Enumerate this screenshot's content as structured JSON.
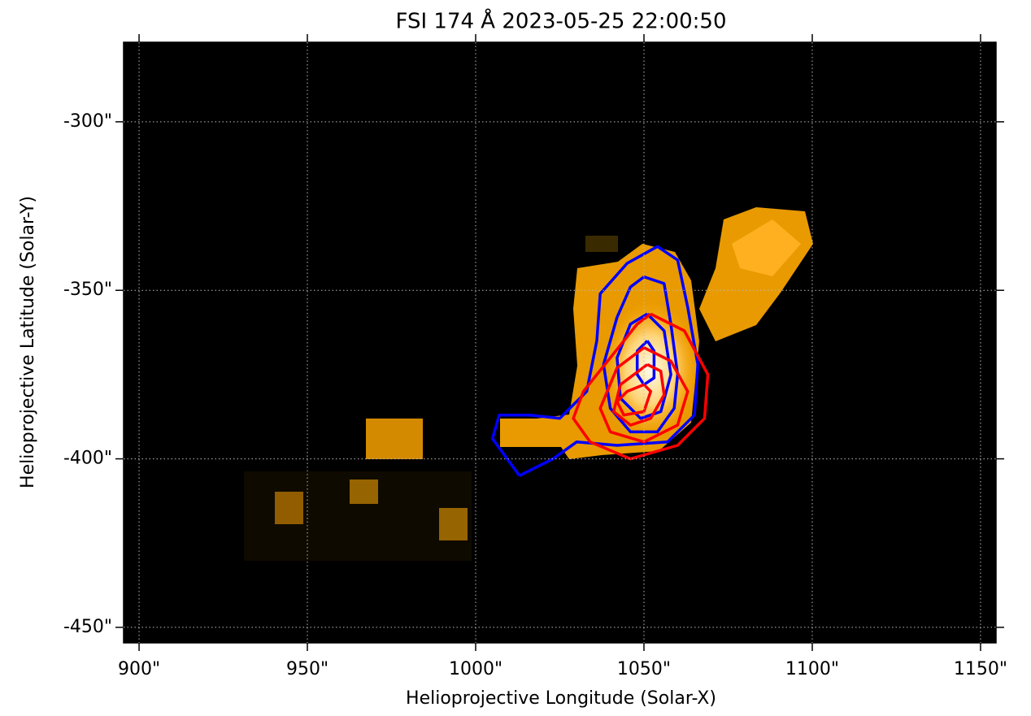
{
  "chart_data": {
    "type": "contour",
    "title": "FSI 174 Å 2023-05-25 22:00:50",
    "x_label": "Helioprojective Longitude (Solar-X)",
    "y_label": "Helioprojective Latitude (Solar-Y)",
    "xlim": [
      895.4,
      1154.6
    ],
    "ylim": [
      -454.6,
      -276.4
    ],
    "xticks": [
      {
        "value": 900,
        "label": "900\""
      },
      {
        "value": 950,
        "label": "950\""
      },
      {
        "value": 1000,
        "label": "1000\""
      },
      {
        "value": 1050,
        "label": "1050\""
      },
      {
        "value": 1100,
        "label": "1100\""
      },
      {
        "value": 1150,
        "label": "1150\""
      }
    ],
    "yticks": [
      {
        "value": -300,
        "label": "-300\""
      },
      {
        "value": -350,
        "label": "-350\""
      },
      {
        "value": -400,
        "label": "-400\""
      },
      {
        "value": -450,
        "label": "-450\""
      }
    ],
    "grid": true,
    "series": [
      {
        "color": "#0000ff",
        "x": [
          1013,
          1005,
          1007,
          1016,
          1025,
          1033,
          1036,
          1037,
          1045,
          1054,
          1060,
          1063,
          1066,
          1065,
          1057,
          1042,
          1030,
          1023,
          1013
        ],
        "values": [
          -405,
          -394,
          -387,
          -387,
          -388,
          -380,
          -365,
          -351,
          -342,
          -337,
          -341,
          -355,
          -372,
          -387,
          -395,
          -396,
          -395,
          -400,
          -405
        ]
      },
      {
        "color": "#0000ff",
        "x": [
          1050,
          1056,
          1058,
          1060,
          1059,
          1054,
          1046,
          1040,
          1038,
          1042,
          1046,
          1050
        ],
        "values": [
          -346,
          -348,
          -360,
          -375,
          -385,
          -392,
          -392,
          -385,
          -372,
          -358,
          -349,
          -346
        ]
      },
      {
        "color": "#0000ff",
        "x": [
          1051,
          1056,
          1058,
          1055,
          1049,
          1043,
          1042,
          1046,
          1051
        ],
        "values": [
          -357,
          -362,
          -375,
          -386,
          -388,
          -382,
          -370,
          -360,
          -357
        ]
      },
      {
        "color": "#0000ff",
        "x": [
          1051,
          1053,
          1053,
          1050,
          1048,
          1048,
          1051
        ],
        "values": [
          -365,
          -368,
          -376,
          -378,
          -375,
          -368,
          -365
        ]
      },
      {
        "color": "#ff0000",
        "x": [
          1052,
          1062,
          1069,
          1068,
          1060,
          1046,
          1034,
          1029,
          1032,
          1040,
          1048,
          1052
        ],
        "values": [
          -357,
          -362,
          -375,
          -388,
          -396,
          -400,
          -395,
          -388,
          -380,
          -370,
          -360,
          -357
        ]
      },
      {
        "color": "#ff0000",
        "x": [
          1050,
          1058,
          1063,
          1060,
          1050,
          1040,
          1037,
          1042,
          1050
        ],
        "values": [
          -367,
          -371,
          -380,
          -390,
          -395,
          -392,
          -385,
          -373,
          -367
        ]
      },
      {
        "color": "#ff0000",
        "x": [
          1051,
          1055,
          1056,
          1052,
          1046,
          1041,
          1043,
          1051
        ],
        "values": [
          -372,
          -374,
          -381,
          -388,
          -390,
          -386,
          -378,
          -372
        ]
      },
      {
        "color": "#ff0000",
        "x": [
          1050,
          1052,
          1050,
          1044,
          1042,
          1045,
          1050
        ],
        "values": [
          -378,
          -380,
          -386,
          -387,
          -383,
          -380,
          -378
        ]
      }
    ]
  }
}
